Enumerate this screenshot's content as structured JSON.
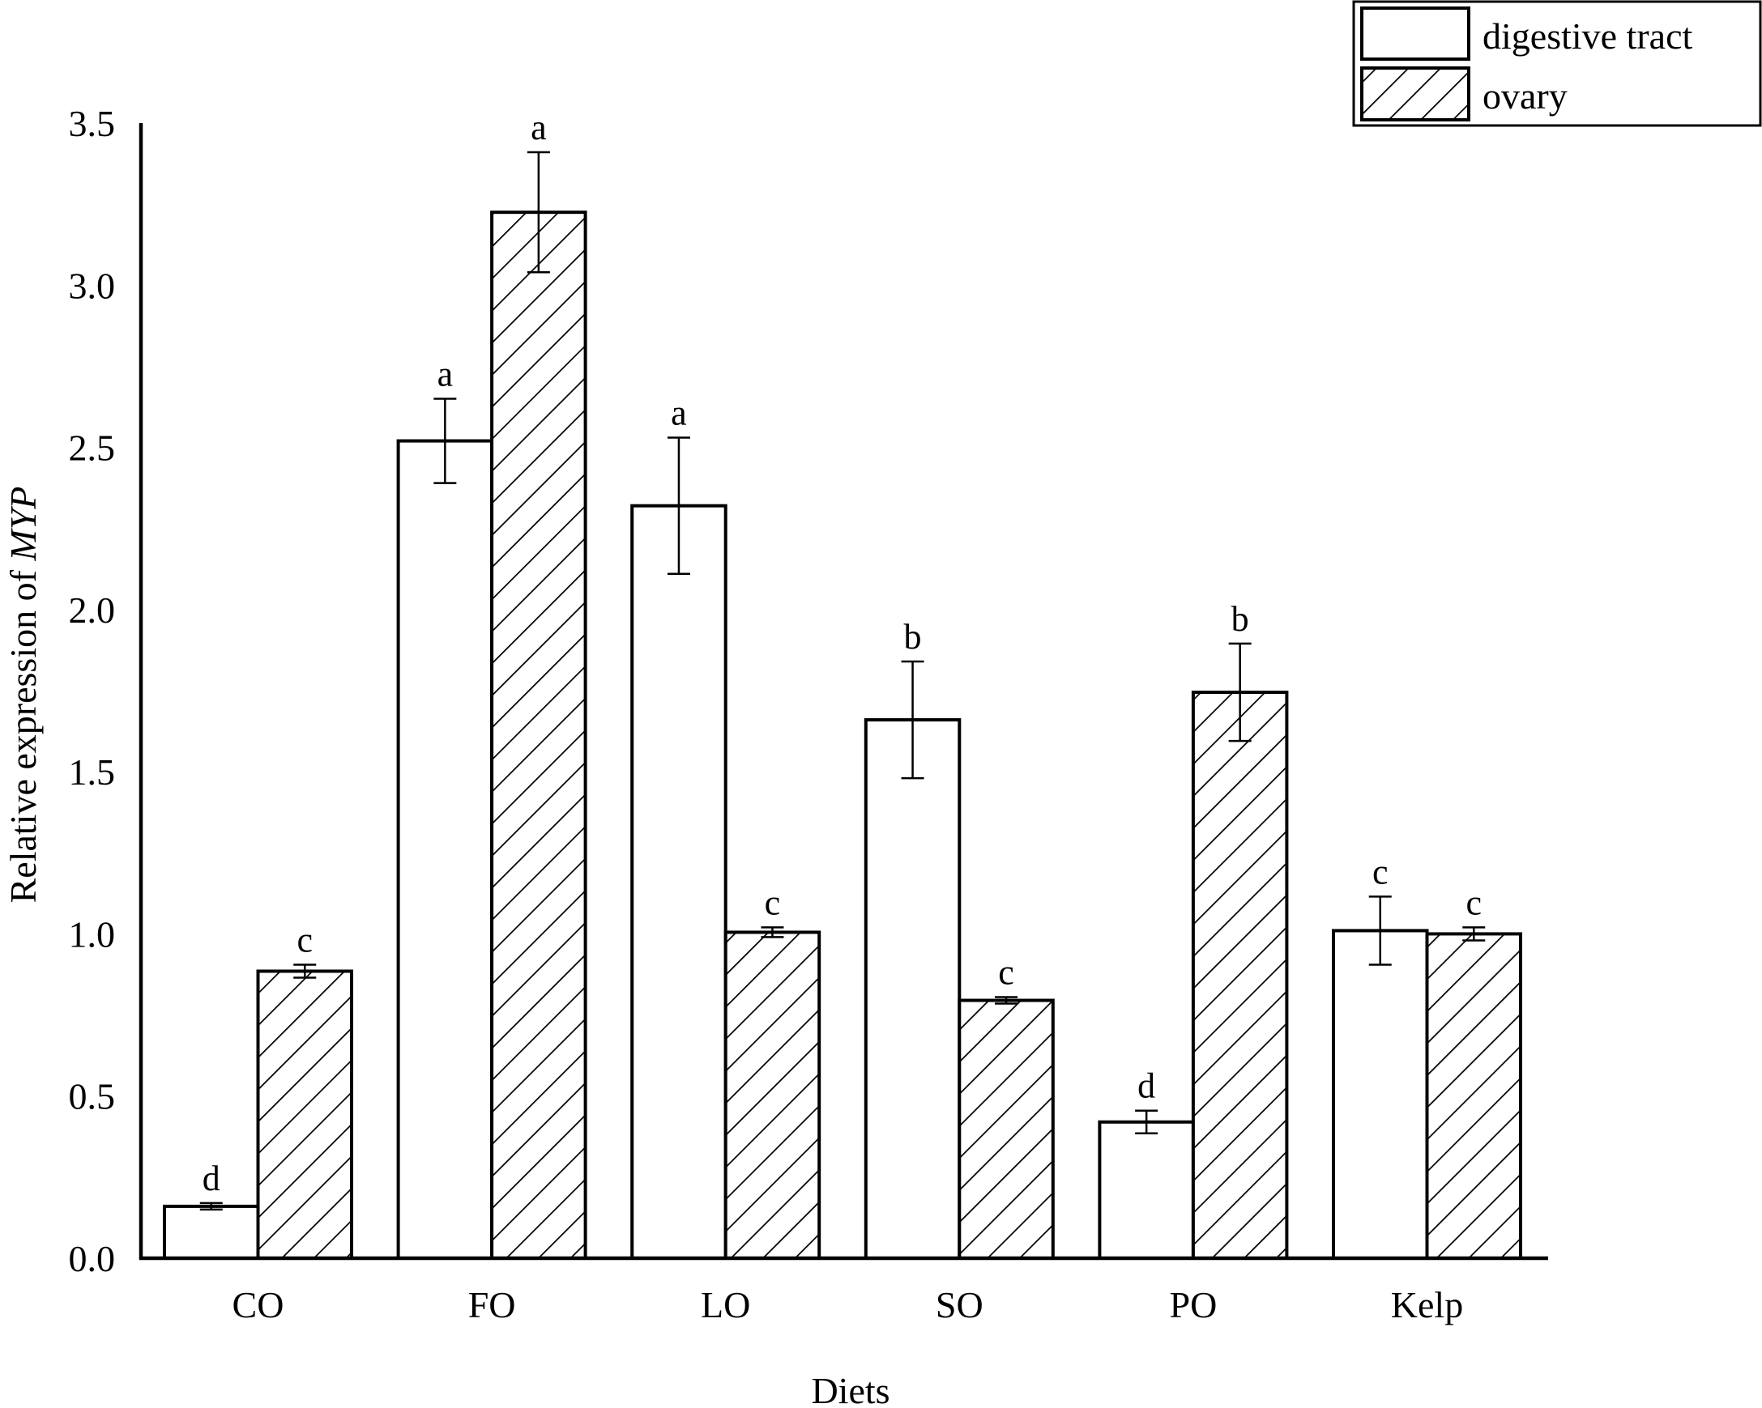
{
  "chart_data": {
    "type": "bar",
    "title": "",
    "xlabel": "Diets",
    "ylabel": "Relative expression of",
    "ylabel_italic": "MYP",
    "ylim": [
      0,
      3.5
    ],
    "yticks": [
      "0.0",
      "0.5",
      "1.0",
      "1.5",
      "2.0",
      "2.5",
      "3.0",
      "3.5"
    ],
    "grid": false,
    "legend_position": "top-right",
    "categories": [
      "CO",
      "FO",
      "LO",
      "SO",
      "PO",
      "Kelp"
    ],
    "series": [
      {
        "name": "digestive tract",
        "pattern": "none",
        "values": [
          0.16,
          2.52,
          2.32,
          1.66,
          0.42,
          1.01
        ],
        "errors": [
          0.01,
          0.13,
          0.21,
          0.18,
          0.035,
          0.105
        ],
        "significance": [
          "d",
          "a",
          "a",
          "b",
          "d",
          "c"
        ]
      },
      {
        "name": "ovary",
        "pattern": "hatch",
        "values": [
          0.885,
          3.225,
          1.005,
          0.795,
          1.745,
          1.0
        ],
        "errors": [
          0.02,
          0.185,
          0.015,
          0.01,
          0.15,
          0.02
        ],
        "significance": [
          "c",
          "a",
          "c",
          "c",
          "b",
          "c"
        ]
      }
    ]
  },
  "colors": {
    "bar_fill": "#ffffff",
    "stroke": "#000000",
    "background": "#ffffff"
  }
}
